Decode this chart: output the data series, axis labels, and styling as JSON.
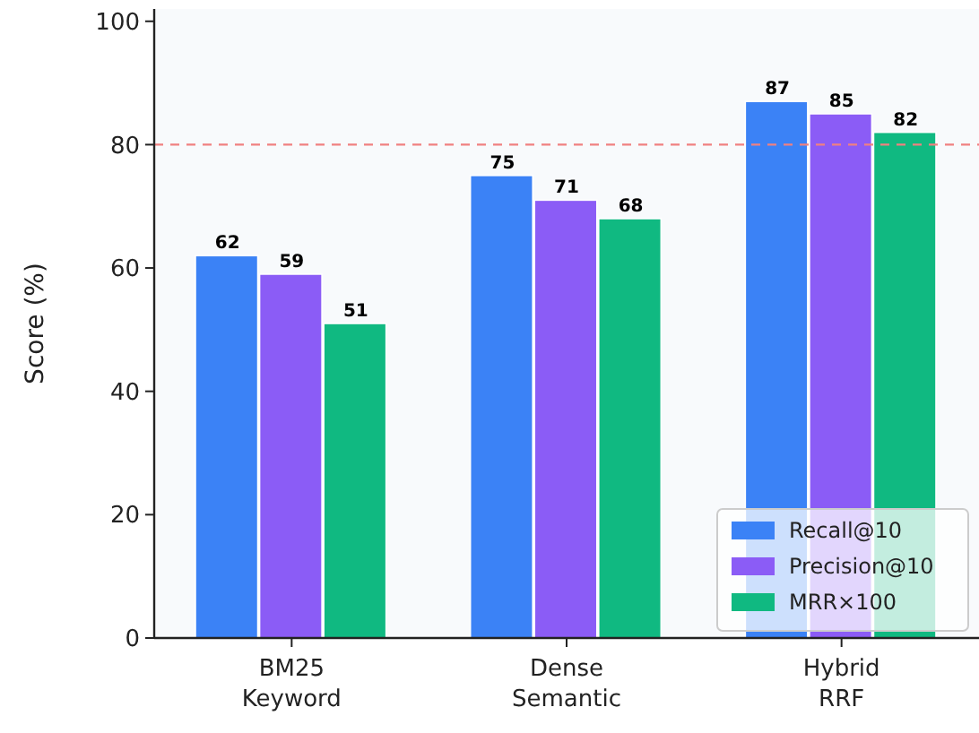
{
  "chart_data": {
    "type": "bar",
    "ylabel": "Score (%)",
    "categories": [
      "BM25\nKeyword",
      "Dense\nSemantic",
      "Hybrid\nRRF"
    ],
    "series": [
      {
        "name": "Recall@10",
        "color": "#3b82f6",
        "values": [
          62,
          75,
          87
        ]
      },
      {
        "name": "Precision@10",
        "color": "#8b5cf6",
        "values": [
          59,
          71,
          85
        ]
      },
      {
        "name": "MRR×100",
        "color": "#10b981",
        "values": [
          51,
          68,
          82
        ]
      }
    ],
    "ylim": [
      0,
      102
    ],
    "yticks": [
      0,
      20,
      40,
      60,
      80,
      100
    ],
    "data_labels": true,
    "legend": "bottom right",
    "grid": false,
    "ref_lines": [
      {
        "axis": "y",
        "value": 80,
        "color": "#f08080",
        "line_style": "dashed"
      }
    ]
  }
}
